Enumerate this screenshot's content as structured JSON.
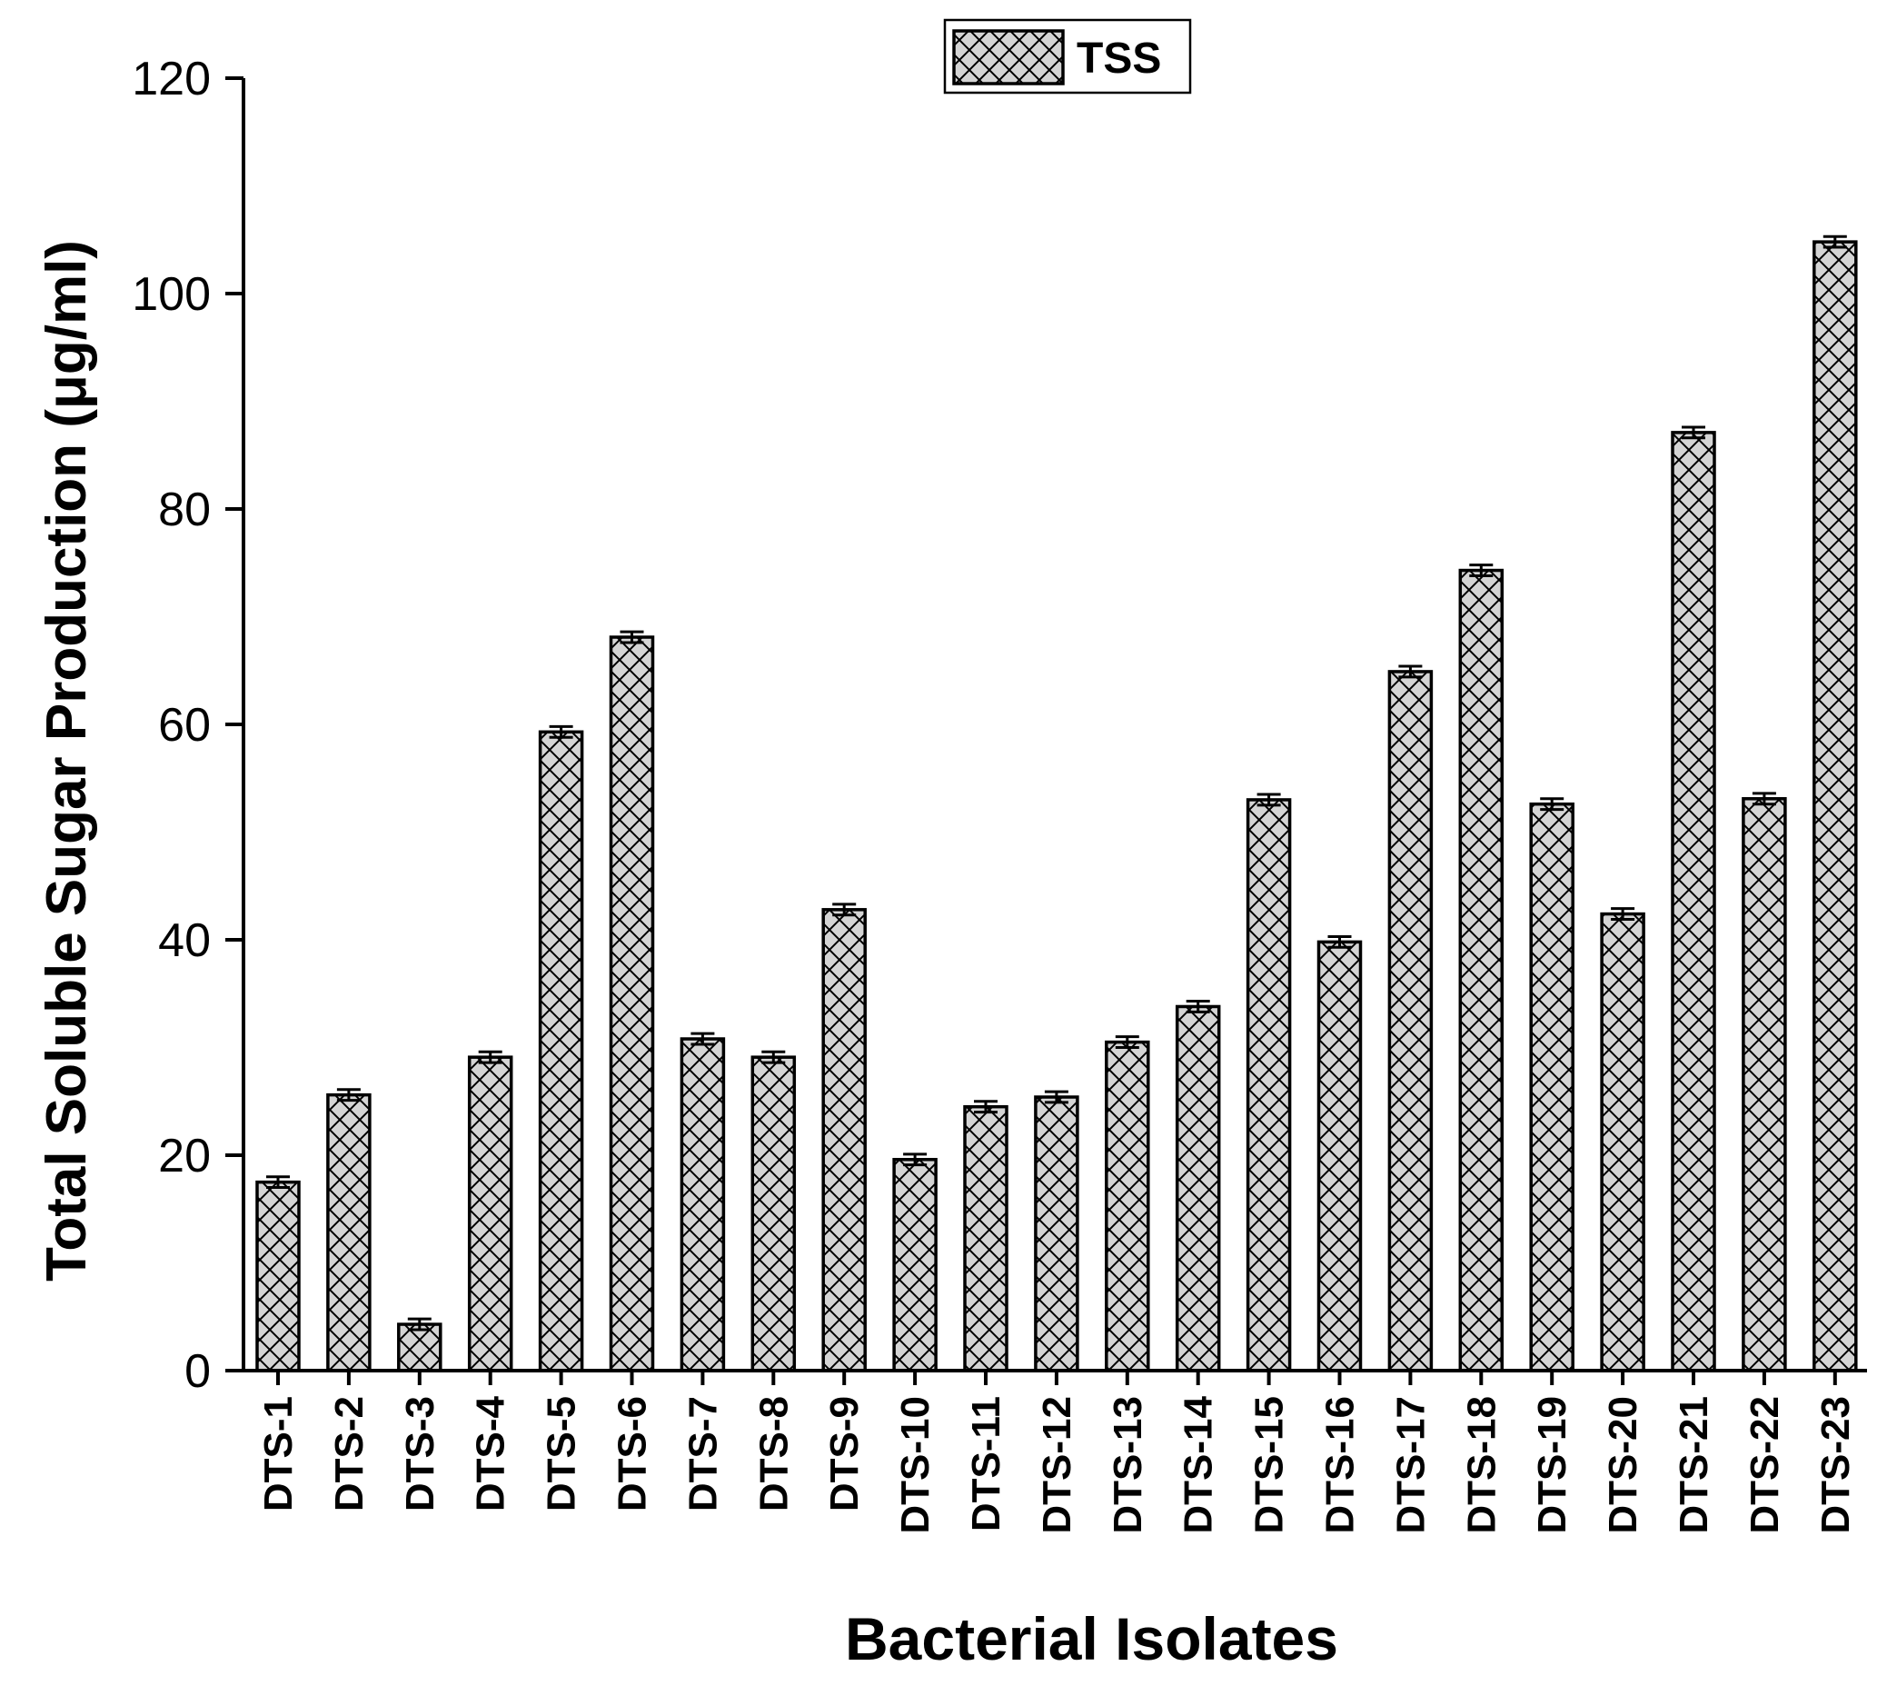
{
  "chart_data": {
    "type": "bar",
    "title": "",
    "xlabel": "Bacterial Isolates",
    "ylabel": "Total Soluble Sugar Production (μg/ml)",
    "ylim": [
      0,
      120
    ],
    "yticks": [
      0,
      20,
      40,
      60,
      80,
      100,
      120
    ],
    "grid": false,
    "legend_position": "top-center",
    "categories": [
      "DTS-1",
      "DTS-2",
      "DTS-3",
      "DTS-4",
      "DTS-5",
      "DTS-6",
      "DTS-7",
      "DTS-8",
      "DTS-9",
      "DTS-10",
      "DTS-11",
      "DTS-12",
      "DTS-13",
      "DTS-14",
      "DTS-15",
      "DTS-16",
      "DTS-17",
      "DTS-18",
      "DTS-19",
      "DTS-20",
      "DTS-21",
      "DTS-22",
      "DTS-23"
    ],
    "series": [
      {
        "name": "TSS",
        "values": [
          17.5,
          25.6,
          4.3,
          29.1,
          59.3,
          68.1,
          30.8,
          29.1,
          42.8,
          19.6,
          24.5,
          25.4,
          30.5,
          33.8,
          53.0,
          39.8,
          64.9,
          74.3,
          52.6,
          42.4,
          87.1,
          53.1,
          104.8
        ],
        "errors": [
          0.5,
          0.5,
          0.5,
          0.5,
          0.5,
          0.5,
          0.5,
          0.5,
          0.5,
          0.5,
          0.5,
          0.5,
          0.5,
          0.5,
          0.5,
          0.5,
          0.5,
          0.5,
          0.5,
          0.5,
          0.5,
          0.5,
          0.5
        ],
        "fill": "#d4d4d4",
        "hatch": "crosshatch"
      }
    ],
    "colors": {
      "bar_fill": "#d4d4d4",
      "hatch_line": "#000000",
      "axis": "#000000"
    }
  }
}
